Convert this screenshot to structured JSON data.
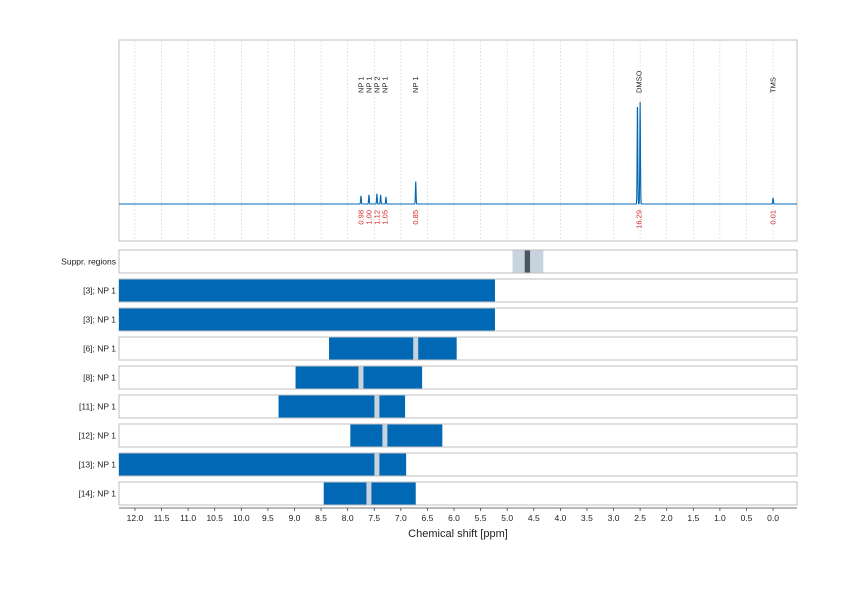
{
  "chart_data": {
    "type": "nmr-spectrum-with-region-bars",
    "xlabel": "Chemical shift [ppm]",
    "x_range": [
      12.3,
      -0.45
    ],
    "x_ticks": [
      12.0,
      11.5,
      11.0,
      10.5,
      10.0,
      9.5,
      9.0,
      8.5,
      8.0,
      7.5,
      7.0,
      6.5,
      6.0,
      5.5,
      5.0,
      4.5,
      4.0,
      3.5,
      3.0,
      2.5,
      2.0,
      1.5,
      1.0,
      0.5,
      0.0
    ],
    "x_tick_labels": [
      "12.0",
      "11.5",
      "11.0",
      "10.5",
      "10.0",
      "9.5",
      "9.0",
      "8.5",
      "8.0",
      "7.5",
      "7.0",
      "6.5",
      "6.0",
      "5.5",
      "5.0",
      "4.5",
      "4.0",
      "3.5",
      "3.0",
      "2.5",
      "2.0",
      "1.5",
      "1.0",
      "0.5",
      "0.0"
    ],
    "colors": {
      "signal": "#0068b4",
      "integral": "#d62728",
      "bar": "#0068b4",
      "gap": "#c8d3de",
      "suppr_light": "#c8d3e0",
      "suppr_dark": "#4d5660",
      "frame": "#b0b0b0",
      "grid": "#c8c8c8"
    },
    "spectrum_peaks": [
      {
        "ppm": 7.75,
        "height": 0.08
      },
      {
        "ppm": 7.6,
        "height": 0.09
      },
      {
        "ppm": 7.45,
        "height": 0.1
      },
      {
        "ppm": 7.38,
        "height": 0.09
      },
      {
        "ppm": 7.28,
        "height": 0.07
      },
      {
        "ppm": 6.72,
        "height": 0.22
      },
      {
        "ppm": 2.55,
        "height": 1.0
      },
      {
        "ppm": 2.5,
        "height": 1.0
      },
      {
        "ppm": 0.0,
        "height": 0.06
      }
    ],
    "peak_annotations": [
      {
        "label": "NP 1",
        "ppm": 7.75
      },
      {
        "label": "NP 1",
        "ppm": 7.6
      },
      {
        "label": "NP 2",
        "ppm": 7.45
      },
      {
        "label": "NP 1",
        "ppm": 7.3
      },
      {
        "label": "NP 1",
        "ppm": 6.72
      },
      {
        "label": "DMSO",
        "ppm": 2.52
      },
      {
        "label": "TMS",
        "ppm": 0.0
      }
    ],
    "integrals": [
      {
        "value": "0.98",
        "ppm": 7.75
      },
      {
        "value": "1.00",
        "ppm": 7.6
      },
      {
        "value": "1.12",
        "ppm": 7.45
      },
      {
        "value": "1.05",
        "ppm": 7.3
      },
      {
        "value": "0.85",
        "ppm": 6.72
      },
      {
        "value": "16.29",
        "ppm": 2.52
      },
      {
        "value": "0.01",
        "ppm": 0.0
      }
    ],
    "suppression_regions": {
      "label": "Suppr. regions",
      "outer": [
        4.9,
        4.32
      ],
      "inner": [
        4.67,
        4.57
      ]
    },
    "region_rows": [
      {
        "label": "[3]; NP 1",
        "start": 12.3,
        "end": 5.23,
        "gaps": []
      },
      {
        "label": "[3]; NP 1",
        "start": 12.3,
        "end": 5.23,
        "gaps": []
      },
      {
        "label": "[6]; NP 1",
        "start": 8.35,
        "end": 5.95,
        "gaps": [
          6.72
        ]
      },
      {
        "label": "[8]; NP 1",
        "start": 8.98,
        "end": 6.6,
        "gaps": [
          7.75
        ]
      },
      {
        "label": "[11]; NP 1",
        "start": 9.3,
        "end": 6.92,
        "gaps": [
          7.45
        ]
      },
      {
        "label": "[12]; NP 1",
        "start": 7.95,
        "end": 6.22,
        "gaps": [
          7.3
        ]
      },
      {
        "label": "[13]; NP 1",
        "start": 12.3,
        "end": 6.9,
        "gaps": [
          7.45
        ]
      },
      {
        "label": "[14]; NP 1",
        "start": 8.45,
        "end": 6.72,
        "gaps": [
          7.6
        ]
      }
    ]
  }
}
